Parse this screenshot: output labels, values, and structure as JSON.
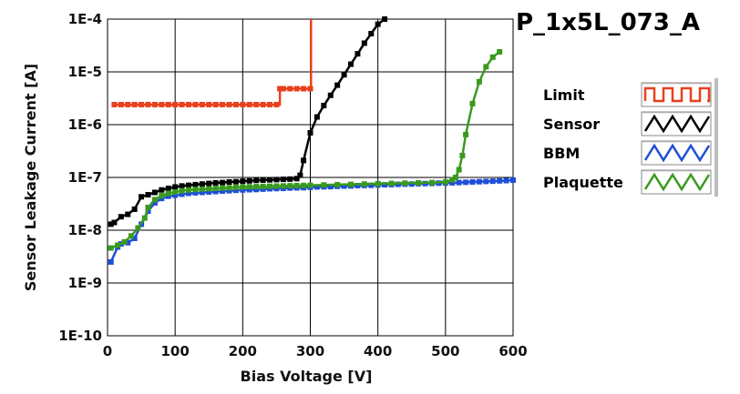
{
  "chart_data": {
    "type": "line",
    "title": "P_1x5L_073_A",
    "xlabel": "Bias Voltage [V]",
    "ylabel": "Sensor Leakage Current [A]",
    "xlim": [
      0,
      600
    ],
    "ylim": [
      1e-10,
      0.0001
    ],
    "yscale": "log",
    "grid": true,
    "legend_position": "right",
    "x_ticks": [
      "0",
      "100",
      "200",
      "300",
      "400",
      "500",
      "600"
    ],
    "y_ticks": [
      "1E-10",
      "1E-9",
      "1E-8",
      "1E-7",
      "1E-6",
      "1E-5",
      "1E-4"
    ],
    "series": [
      {
        "name": "Limit",
        "color": "#e8401c",
        "step": true,
        "x": [
          10,
          20,
          30,
          40,
          50,
          60,
          70,
          80,
          90,
          100,
          110,
          120,
          130,
          140,
          150,
          160,
          170,
          180,
          190,
          200,
          210,
          220,
          230,
          240,
          250,
          255,
          260,
          270,
          280,
          290,
          300,
          301
        ],
        "y": [
          2.4e-06,
          2.4e-06,
          2.4e-06,
          2.4e-06,
          2.4e-06,
          2.4e-06,
          2.4e-06,
          2.4e-06,
          2.4e-06,
          2.4e-06,
          2.4e-06,
          2.4e-06,
          2.4e-06,
          2.4e-06,
          2.4e-06,
          2.4e-06,
          2.4e-06,
          2.4e-06,
          2.4e-06,
          2.4e-06,
          2.4e-06,
          2.4e-06,
          2.4e-06,
          2.4e-06,
          2.4e-06,
          4.8e-06,
          4.8e-06,
          4.8e-06,
          4.8e-06,
          4.8e-06,
          4.8e-06,
          0.0001
        ]
      },
      {
        "name": "Sensor",
        "color": "#000000",
        "x": [
          5,
          10,
          20,
          30,
          40,
          50,
          60,
          70,
          80,
          90,
          100,
          110,
          120,
          130,
          140,
          150,
          160,
          170,
          180,
          190,
          200,
          210,
          220,
          230,
          240,
          250,
          260,
          270,
          280,
          285,
          290,
          300,
          310,
          320,
          330,
          340,
          350,
          360,
          370,
          380,
          390,
          400,
          410
        ],
        "y": [
          1.3e-08,
          1.4e-08,
          1.8e-08,
          2e-08,
          2.5e-08,
          4.3e-08,
          4.7e-08,
          5.2e-08,
          5.8e-08,
          6.2e-08,
          6.6e-08,
          6.9e-08,
          7.1e-08,
          7.3e-08,
          7.5e-08,
          7.7e-08,
          7.9e-08,
          8e-08,
          8.2e-08,
          8.3e-08,
          8.5e-08,
          8.6e-08,
          8.8e-08,
          8.9e-08,
          9e-08,
          9.1e-08,
          9.2e-08,
          9.3e-08,
          9.5e-08,
          1.1e-07,
          2.1e-07,
          7e-07,
          1.4e-06,
          2.3e-06,
          3.6e-06,
          5.6e-06,
          8.8e-06,
          1.4e-05,
          2.2e-05,
          3.5e-05,
          5.3e-05,
          8e-05,
          0.0001
        ]
      },
      {
        "name": "BBM",
        "color": "#1f4fd6",
        "x": [
          5,
          15,
          20,
          30,
          40,
          50,
          60,
          70,
          80,
          90,
          100,
          110,
          120,
          130,
          140,
          150,
          160,
          170,
          180,
          190,
          200,
          210,
          220,
          230,
          240,
          250,
          260,
          270,
          280,
          290,
          300,
          310,
          320,
          330,
          340,
          350,
          360,
          370,
          380,
          390,
          400,
          410,
          420,
          430,
          440,
          450,
          460,
          470,
          480,
          490,
          500,
          510,
          520,
          530,
          540,
          550,
          560,
          570,
          580,
          590,
          600
        ],
        "y": [
          2.5e-09,
          4.8e-09,
          5.5e-09,
          5.8e-09,
          7e-09,
          1.3e-08,
          2.3e-08,
          3.3e-08,
          4e-08,
          4.4e-08,
          4.6e-08,
          4.8e-08,
          5e-08,
          5.1e-08,
          5.2e-08,
          5.3e-08,
          5.4e-08,
          5.5e-08,
          5.6e-08,
          5.7e-08,
          5.8e-08,
          5.85e-08,
          5.9e-08,
          6e-08,
          6.1e-08,
          6.15e-08,
          6.2e-08,
          6.3e-08,
          6.35e-08,
          6.4e-08,
          6.5e-08,
          6.6e-08,
          6.65e-08,
          6.7e-08,
          6.8e-08,
          6.85e-08,
          6.9e-08,
          7e-08,
          7.05e-08,
          7.1e-08,
          7.2e-08,
          7.25e-08,
          7.3e-08,
          7.4e-08,
          7.45e-08,
          7.5e-08,
          7.6e-08,
          7.65e-08,
          7.7e-08,
          7.8e-08,
          7.85e-08,
          7.9e-08,
          8e-08,
          8.1e-08,
          8.2e-08,
          8.3e-08,
          8.4e-08,
          8.5e-08,
          8.6e-08,
          8.7e-08,
          8.9e-08
        ]
      },
      {
        "name": "Plaquette",
        "color": "#3a9a1e",
        "x": [
          5,
          15,
          25,
          35,
          45,
          55,
          60,
          70,
          80,
          90,
          100,
          110,
          120,
          130,
          140,
          150,
          160,
          170,
          180,
          190,
          200,
          210,
          220,
          230,
          240,
          250,
          260,
          270,
          280,
          290,
          300,
          320,
          340,
          360,
          380,
          400,
          420,
          440,
          460,
          480,
          500,
          510,
          515,
          520,
          525,
          530,
          540,
          550,
          560,
          570,
          580
        ],
        "y": [
          4.6e-09,
          5.2e-09,
          6e-09,
          7.8e-09,
          1.1e-08,
          1.7e-08,
          2.7e-08,
          3.8e-08,
          4.5e-08,
          5e-08,
          5.3e-08,
          5.6e-08,
          5.8e-08,
          5.9e-08,
          6e-08,
          6.1e-08,
          6.2e-08,
          6.3e-08,
          6.4e-08,
          6.5e-08,
          6.6e-08,
          6.65e-08,
          6.7e-08,
          6.75e-08,
          6.8e-08,
          6.85e-08,
          6.9e-08,
          6.95e-08,
          7e-08,
          7.05e-08,
          7.1e-08,
          7.2e-08,
          7.3e-08,
          7.4e-08,
          7.5e-08,
          7.6e-08,
          7.7e-08,
          7.8e-08,
          7.9e-08,
          8e-08,
          8.2e-08,
          9e-08,
          1e-07,
          1.4e-07,
          2.6e-07,
          6.5e-07,
          2.5e-06,
          6.5e-06,
          1.25e-05,
          1.9e-05,
          2.4e-05
        ]
      }
    ]
  }
}
